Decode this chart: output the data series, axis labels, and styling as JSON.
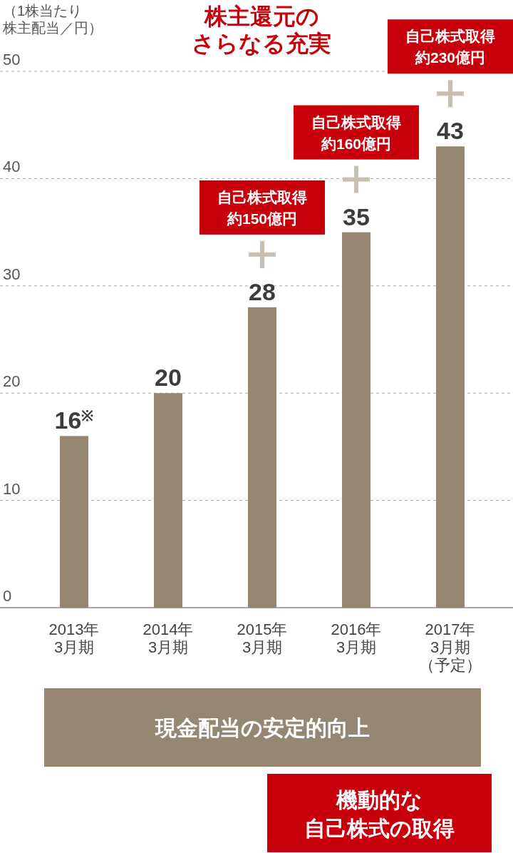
{
  "chart_data": {
    "type": "bar",
    "title": "株主還元のさらなる充実",
    "ylabel": "（1株当たり株主配当／円）",
    "categories": [
      "2013年3月期",
      "2014年3月期",
      "2015年3月期",
      "2016年3月期",
      "2017年3月期（予定）"
    ],
    "values": [
      16,
      20,
      28,
      35,
      43
    ],
    "color": "#968773",
    "value_labels": [
      "16$^{※}$",
      "20",
      "28",
      "35",
      "43"
    ],
    "ylim": [
      0,
      50
    ],
    "yticks": [
      0,
      10,
      20,
      30,
      40,
      50
    ],
    "grid": "y",
    "line_style": "dashed",
    "annotations": [
      "自己株式取得約150億円",
      "自己株式取得約160億円",
      "自己株式取得約230億円",
      "現金配当の安定的向上",
      "機動的な自己株式の取得"
    ]
  }
}
